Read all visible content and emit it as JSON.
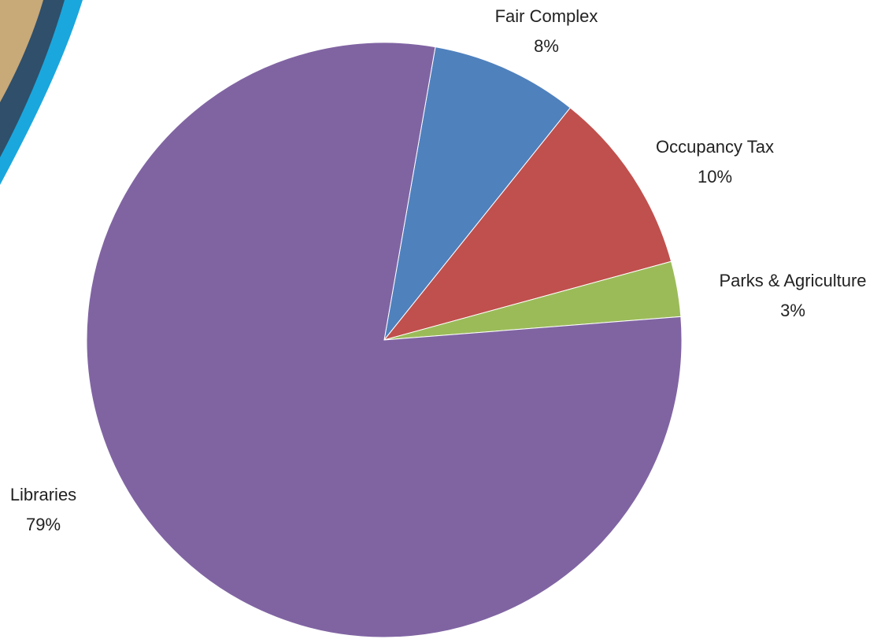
{
  "chart_data": {
    "type": "pie",
    "categories": [
      "Fair Complex",
      "Occupancy Tax",
      "Parks & Agriculture",
      "Libraries"
    ],
    "values": [
      8,
      10,
      3,
      79
    ],
    "value_labels": [
      "8%",
      "10%",
      "3%",
      "79%"
    ],
    "colors": [
      "#4f81bd",
      "#c0504d",
      "#9bbb59",
      "#8064a2"
    ]
  }
}
